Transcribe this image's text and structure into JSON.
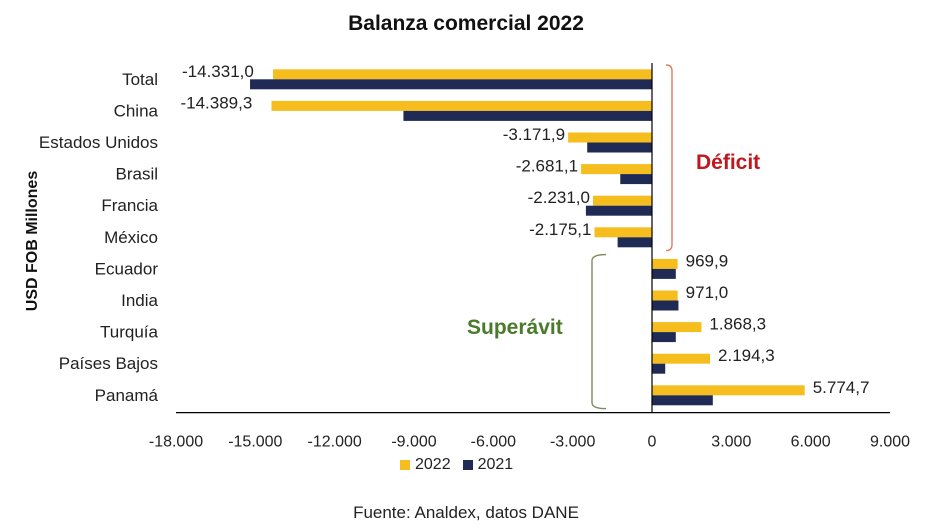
{
  "chart_data": {
    "type": "bar",
    "orientation": "horizontal",
    "title": "Balanza comercial 2022",
    "ylabel": "USD FOB Millones",
    "xlabel": "",
    "categories": [
      "Total",
      "China",
      "Estados Unidos",
      "Brasil",
      "Francia",
      "México",
      "Ecuador",
      "India",
      "Turquía",
      "Países Bajos",
      "Panamá"
    ],
    "series": [
      {
        "name": "2022",
        "color": "#F5BE1E",
        "values": [
          -14331.0,
          -14389.3,
          -3171.9,
          -2681.1,
          -2231.0,
          -2175.1,
          969.9,
          971.0,
          1868.3,
          2194.3,
          5774.7
        ]
      },
      {
        "name": "2021",
        "color": "#1F2A55",
        "values": [
          -15200,
          -9400,
          -2450,
          -1200,
          -2500,
          -1300,
          900,
          1000,
          900,
          500,
          2300
        ]
      }
    ],
    "data_labels": [
      "-14.331,0",
      "-14.389,3",
      "-3.171,9",
      "-2.681,1",
      "-2.231,0",
      "-2.175,1",
      "969,9",
      "971,0",
      "1.868,3",
      "2.194,3",
      "5.774,7"
    ],
    "xlim": [
      -18000,
      9000
    ],
    "xticks": [
      -18000,
      -15000,
      -12000,
      -9000,
      -6000,
      -3000,
      0,
      3000,
      6000,
      9000
    ],
    "xtick_labels": [
      "-18.000",
      "-15.000",
      "-12.000",
      "-9.000",
      "-6.000",
      "-3.000",
      "0",
      "3.000",
      "6.000",
      "9.000"
    ],
    "grid": false,
    "legend_position": "bottom",
    "annotations": [
      {
        "id": "deficit",
        "text": "Déficit",
        "color": "#C0181E",
        "bracket_color": "#E07A5F",
        "from_category": "Total",
        "to_category": "México"
      },
      {
        "id": "surplus",
        "text": "Superávit",
        "color": "#4A7A2A",
        "bracket_color": "#7A8A5A",
        "from_category": "Ecuador",
        "to_category": "Panamá"
      }
    ]
  },
  "legend": {
    "items": [
      {
        "label": "2022",
        "color": "#F5BE1E"
      },
      {
        "label": "2021",
        "color": "#1F2A55"
      }
    ]
  },
  "source": "Fuente: Analdex, datos DANE"
}
